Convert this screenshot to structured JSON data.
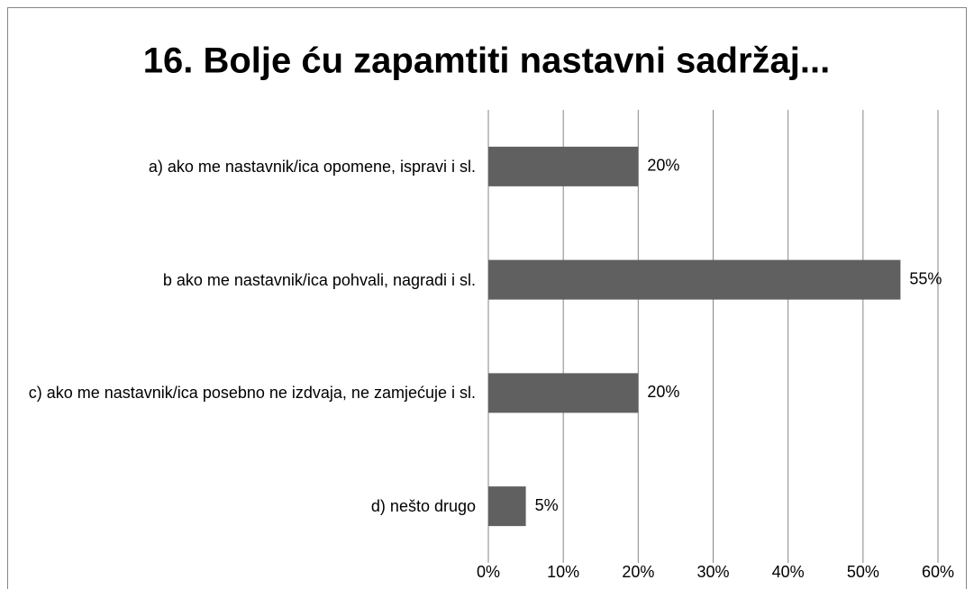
{
  "chart_data": {
    "type": "bar",
    "orientation": "horizontal",
    "title": "16. Bolje ću zapamtiti nastavni sadržaj...",
    "categories": [
      "a) ako me nastavnik/ica opomene, ispravi i sl.",
      "b ako me nastavnik/ica pohvali, nagradi i sl.",
      "c) ako me nastavnik/ica posebno ne izdvaja, ne zamjećuje i sl.",
      "d) nešto drugo"
    ],
    "values": [
      20,
      55,
      20,
      5
    ],
    "value_labels": [
      "20%",
      "55%",
      "20%",
      "5%"
    ],
    "color": "#606060",
    "xlim": [
      0,
      60
    ],
    "xticks": [
      {
        "value": 0,
        "label": "0%"
      },
      {
        "value": 10,
        "label": "10%"
      },
      {
        "value": 20,
        "label": "20%"
      },
      {
        "value": 30,
        "label": "30%"
      },
      {
        "value": 40,
        "label": "40%"
      },
      {
        "value": 50,
        "label": "50%"
      },
      {
        "value": 60,
        "label": "60%"
      }
    ],
    "grid": true
  }
}
